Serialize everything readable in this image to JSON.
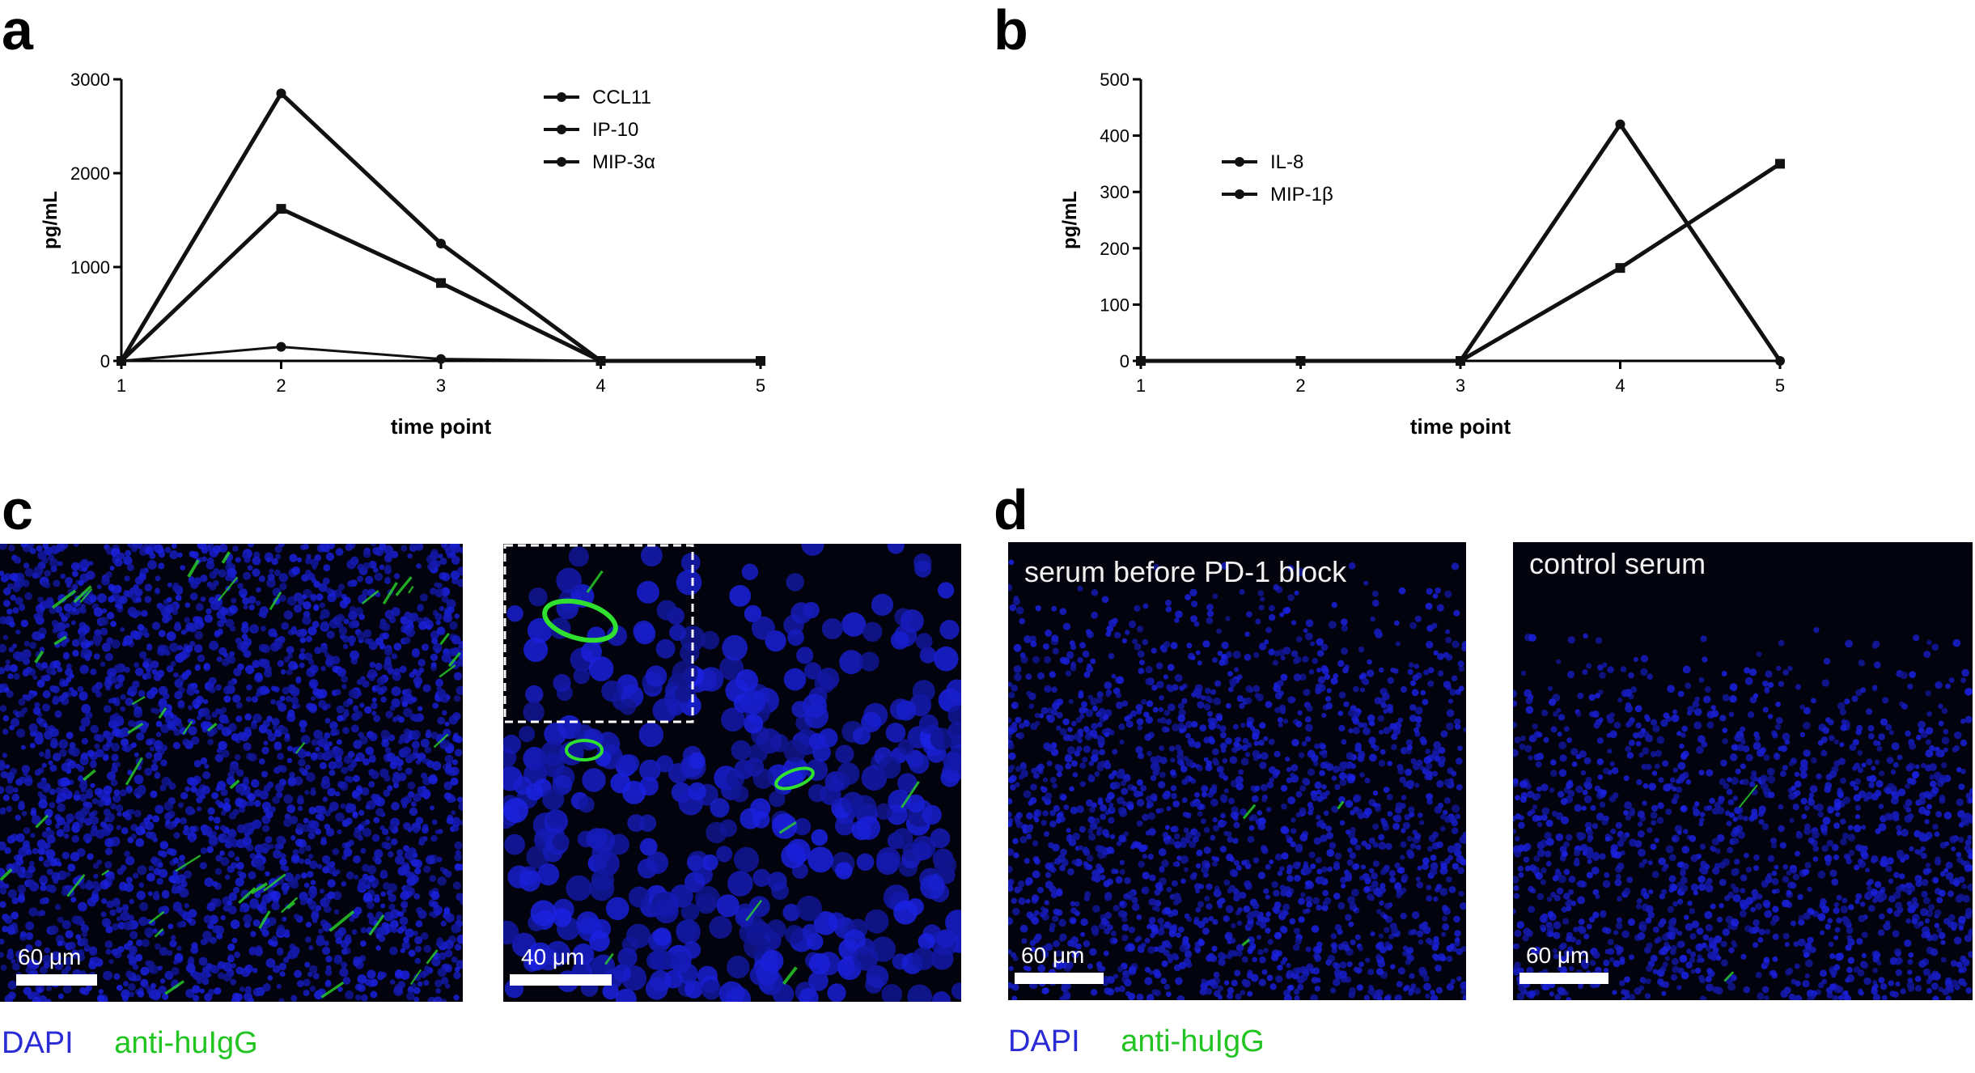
{
  "panels": {
    "a": {
      "letter": "a"
    },
    "b": {
      "letter": "b"
    },
    "c": {
      "letter": "c",
      "scale_left": "60 μm",
      "scale_right": "40 μm",
      "legend_dapi": "DAPI",
      "legend_igg": "anti-huIgG"
    },
    "d": {
      "letter": "d",
      "title_left": "serum before PD-1 block",
      "title_right": "control serum",
      "scale_left": "60 μm",
      "scale_right": "60 μm",
      "legend_dapi": "DAPI",
      "legend_igg": "anti-huIgG"
    }
  },
  "colors": {
    "dapi": "#2b2bd6",
    "igg": "#22c422",
    "tissue_bg": "#03030d",
    "line": "#000000"
  },
  "chart_data": [
    {
      "type": "line",
      "panel": "a",
      "x": [
        1,
        2,
        3,
        4,
        5
      ],
      "xlabel": "time point",
      "ylabel": "pg/mL",
      "xlim": [
        1,
        5
      ],
      "ylim": [
        0,
        3000
      ],
      "yticks": [
        0,
        1000,
        2000,
        3000
      ],
      "xticks": [
        1,
        2,
        3,
        4,
        5
      ],
      "legend_position": "top-right",
      "series": [
        {
          "name": "CCL11",
          "values": [
            0,
            2850,
            1250,
            0,
            0
          ]
        },
        {
          "name": "IP-10",
          "values": [
            0,
            1620,
            830,
            0,
            0
          ]
        },
        {
          "name": "MIP-3α",
          "values": [
            0,
            150,
            20,
            0,
            0
          ]
        }
      ]
    },
    {
      "type": "line",
      "panel": "b",
      "x": [
        1,
        2,
        3,
        4,
        5
      ],
      "xlabel": "time point",
      "ylabel": "pg/mL",
      "xlim": [
        1,
        5
      ],
      "ylim": [
        0,
        500
      ],
      "yticks": [
        0,
        100,
        200,
        300,
        400,
        500
      ],
      "xticks": [
        1,
        2,
        3,
        4,
        5
      ],
      "legend_position": "top-left",
      "series": [
        {
          "name": "IL-8",
          "values": [
            0,
            0,
            0,
            420,
            0
          ]
        },
        {
          "name": "MIP-1β",
          "values": [
            0,
            0,
            0,
            165,
            350
          ]
        }
      ]
    }
  ]
}
